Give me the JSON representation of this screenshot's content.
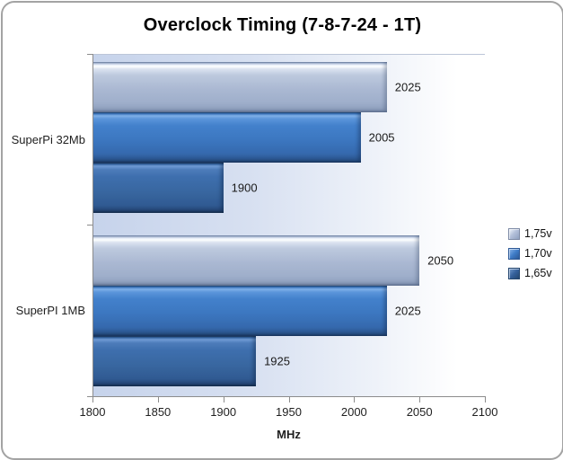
{
  "chart_data": {
    "type": "bar",
    "orientation": "horizontal",
    "title": "Overclock Timing (7-8-7-24 - 1T)",
    "categories": [
      "SuperPi 32Mb",
      "SuperPI 1MB"
    ],
    "series": [
      {
        "name": "1,75v",
        "values": [
          2025,
          2050
        ],
        "color": "#aab8d2"
      },
      {
        "name": "1,70v",
        "values": [
          2005,
          2025
        ],
        "color": "#3c77c0"
      },
      {
        "name": "1,65v",
        "values": [
          1900,
          1925
        ],
        "color": "#38669f"
      }
    ],
    "xlabel": "MHz",
    "xlim": [
      1800,
      2100
    ],
    "xticks": [
      1800,
      1850,
      1900,
      1950,
      2000,
      2050,
      2100
    ],
    "grid": false,
    "legend_position": "right",
    "data_labels": true,
    "colors": {
      "axis": "#8c8c8c",
      "label_text": "#1a1a1a",
      "plot_bg_left": "#c6d3eb",
      "plot_bg_right": "#ffffff"
    }
  }
}
